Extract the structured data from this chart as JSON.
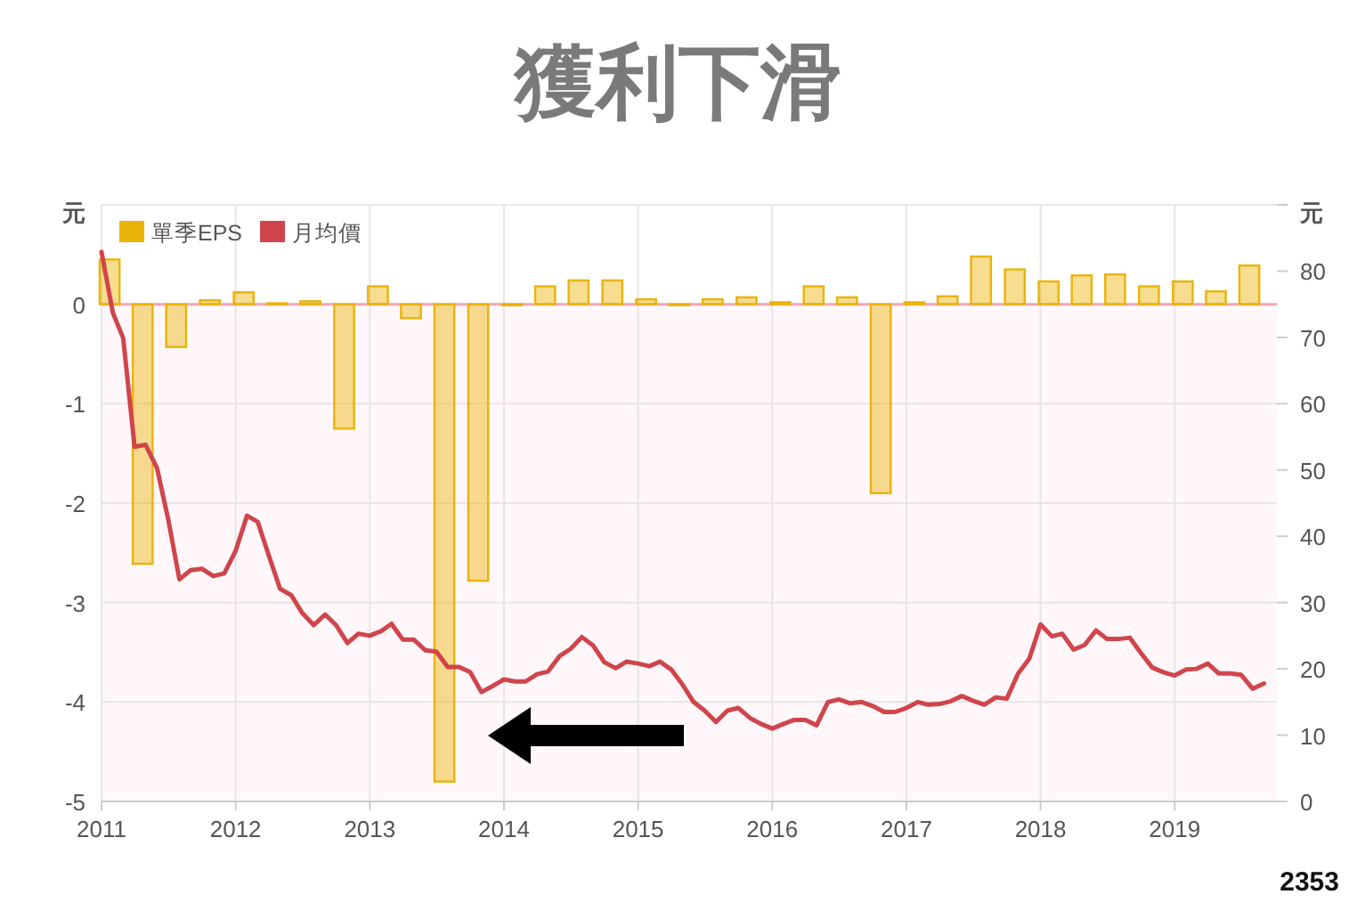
{
  "chart_data": {
    "type": "bar",
    "title": "獲利下滑",
    "ylabel": "元",
    "y2label": "元",
    "xlim": [
      "2011-01",
      "2019-10-06"
    ],
    "xticks": [
      {
        "value": "2011",
        "label": "2011"
      },
      {
        "value": "2012",
        "label": "2012"
      },
      {
        "value": "2013",
        "label": "2013"
      },
      {
        "value": "2014",
        "label": "2014"
      },
      {
        "value": "2015",
        "label": "2015"
      },
      {
        "value": "2016",
        "label": "2016"
      },
      {
        "value": "2017",
        "label": "2017"
      },
      {
        "value": "2018",
        "label": "2018"
      },
      {
        "value": "2019",
        "label": "2019"
      }
    ],
    "ylim": [
      -5,
      1
    ],
    "yticks": [
      -5,
      -4,
      -3,
      -2,
      -1,
      0
    ],
    "y2lim": [
      0,
      90
    ],
    "y2ticks": [
      0,
      10,
      20,
      30,
      40,
      50,
      60,
      70,
      80
    ],
    "grid": true,
    "legend": "top left",
    "bands": [
      {
        "axis": "y",
        "from": -5,
        "to": 0,
        "label": null,
        "color": "#fff7f9"
      }
    ],
    "ref_lines": [
      {
        "axis": "y",
        "value": 0,
        "label": null,
        "color": "#f4a6b6"
      }
    ],
    "annotations": [
      "2353"
    ],
    "series": [
      {
        "name": "單季EPS",
        "color": "#eab308",
        "x": [
          "2011-01-23",
          "2011-04-23",
          "2011-07-23",
          "2011-10-23",
          "2012-01-23",
          "2012-04-23",
          "2012-07-23",
          "2012-10-23",
          "2013-01-23",
          "2013-04-23",
          "2013-07-23",
          "2013-10-23",
          "2014-01-23",
          "2014-04-23",
          "2014-07-23",
          "2014-10-23",
          "2015-01-23",
          "2015-04-23",
          "2015-07-23",
          "2015-10-23",
          "2016-01-23",
          "2016-04-23",
          "2016-07-23",
          "2016-10-23",
          "2017-01-23",
          "2017-04-23",
          "2017-07-23",
          "2017-10-23",
          "2018-01-23",
          "2018-04-23",
          "2018-07-23",
          "2018-10-23",
          "2019-01-23",
          "2019-04-23",
          "2019-07-23"
        ],
        "values": [
          0.45,
          -2.61,
          -0.43,
          0.04,
          0.12,
          0.01,
          0.03,
          -1.25,
          0.18,
          -0.14,
          -4.8,
          -2.78,
          -0.01,
          0.18,
          0.24,
          0.24,
          0.05,
          -0.01,
          0.05,
          0.07,
          0.02,
          0.18,
          0.07,
          -1.9,
          0.02,
          0.08,
          0.48,
          0.35,
          0.23,
          0.29,
          0.3,
          0.18,
          0.23,
          0.13,
          0.39
        ]
      },
      {
        "name": "月均價",
        "type": "line",
        "axis": "y2",
        "color": "#d0454c",
        "line_style": "solid",
        "marker": "none",
        "x": [
          "2011-01",
          "2011-02",
          "2011-03",
          "2011-04",
          "2011-05",
          "2011-06",
          "2011-07",
          "2011-08",
          "2011-09",
          "2011-10",
          "2011-11",
          "2011-12",
          "2012-01",
          "2012-02",
          "2012-03",
          "2012-04",
          "2012-05",
          "2012-06",
          "2012-07",
          "2012-08",
          "2012-09",
          "2012-10",
          "2012-11",
          "2012-12",
          "2013-01",
          "2013-02",
          "2013-03",
          "2013-04",
          "2013-05",
          "2013-06",
          "2013-07",
          "2013-08",
          "2013-09",
          "2013-10",
          "2013-11",
          "2013-12",
          "2014-01",
          "2014-02",
          "2014-03",
          "2014-04",
          "2014-05",
          "2014-06",
          "2014-07",
          "2014-08",
          "2014-09",
          "2014-10",
          "2014-11",
          "2014-12",
          "2015-01",
          "2015-02",
          "2015-03",
          "2015-04",
          "2015-05",
          "2015-06",
          "2015-07",
          "2015-08",
          "2015-09",
          "2015-10",
          "2015-11",
          "2015-12",
          "2016-01",
          "2016-02",
          "2016-03",
          "2016-04",
          "2016-05",
          "2016-06",
          "2016-07",
          "2016-08",
          "2016-09",
          "2016-10",
          "2016-11",
          "2016-12",
          "2017-01",
          "2017-02",
          "2017-03",
          "2017-04",
          "2017-05",
          "2017-06",
          "2017-07",
          "2017-08",
          "2017-09",
          "2017-10",
          "2017-11",
          "2017-12",
          "2018-01",
          "2018-02",
          "2018-03",
          "2018-04",
          "2018-05",
          "2018-06",
          "2018-07",
          "2018-08",
          "2018-09",
          "2018-10",
          "2018-11",
          "2018-12",
          "2019-01",
          "2019-02",
          "2019-03",
          "2019-04",
          "2019-05",
          "2019-06",
          "2019-07",
          "2019-08",
          "2019-09"
        ],
        "values": [
          82.9,
          73.7,
          69.9,
          53.5,
          53.8,
          50.3,
          42.7,
          33.5,
          34.9,
          35.1,
          34.0,
          34.4,
          37.8,
          43.1,
          42.2,
          37.0,
          32.1,
          31.1,
          28.4,
          26.6,
          28.2,
          26.6,
          23.9,
          25.3,
          25.0,
          25.7,
          26.8,
          24.4,
          24.4,
          22.8,
          22.6,
          20.3,
          20.3,
          19.5,
          16.5,
          17.4,
          18.4,
          18.1,
          18.1,
          19.2,
          19.6,
          21.9,
          23.0,
          24.8,
          23.5,
          21.0,
          20.1,
          21.1,
          20.8,
          20.4,
          21.1,
          19.9,
          17.7,
          15.0,
          13.7,
          12.0,
          13.7,
          14.1,
          12.6,
          11.7,
          11.0,
          11.7,
          12.3,
          12.3,
          11.5,
          15.0,
          15.4,
          14.8,
          15.0,
          14.4,
          13.5,
          13.5,
          14.1,
          15.0,
          14.6,
          14.7,
          15.1,
          15.9,
          15.2,
          14.6,
          15.7,
          15.5,
          19.3,
          21.5,
          26.7,
          24.9,
          25.3,
          22.9,
          23.6,
          25.8,
          24.5,
          24.5,
          24.7,
          22.4,
          20.2,
          19.5,
          19.0,
          19.9,
          20.0,
          20.8,
          19.3,
          19.3,
          19.1,
          17.0,
          17.8
        ]
      }
    ]
  }
}
